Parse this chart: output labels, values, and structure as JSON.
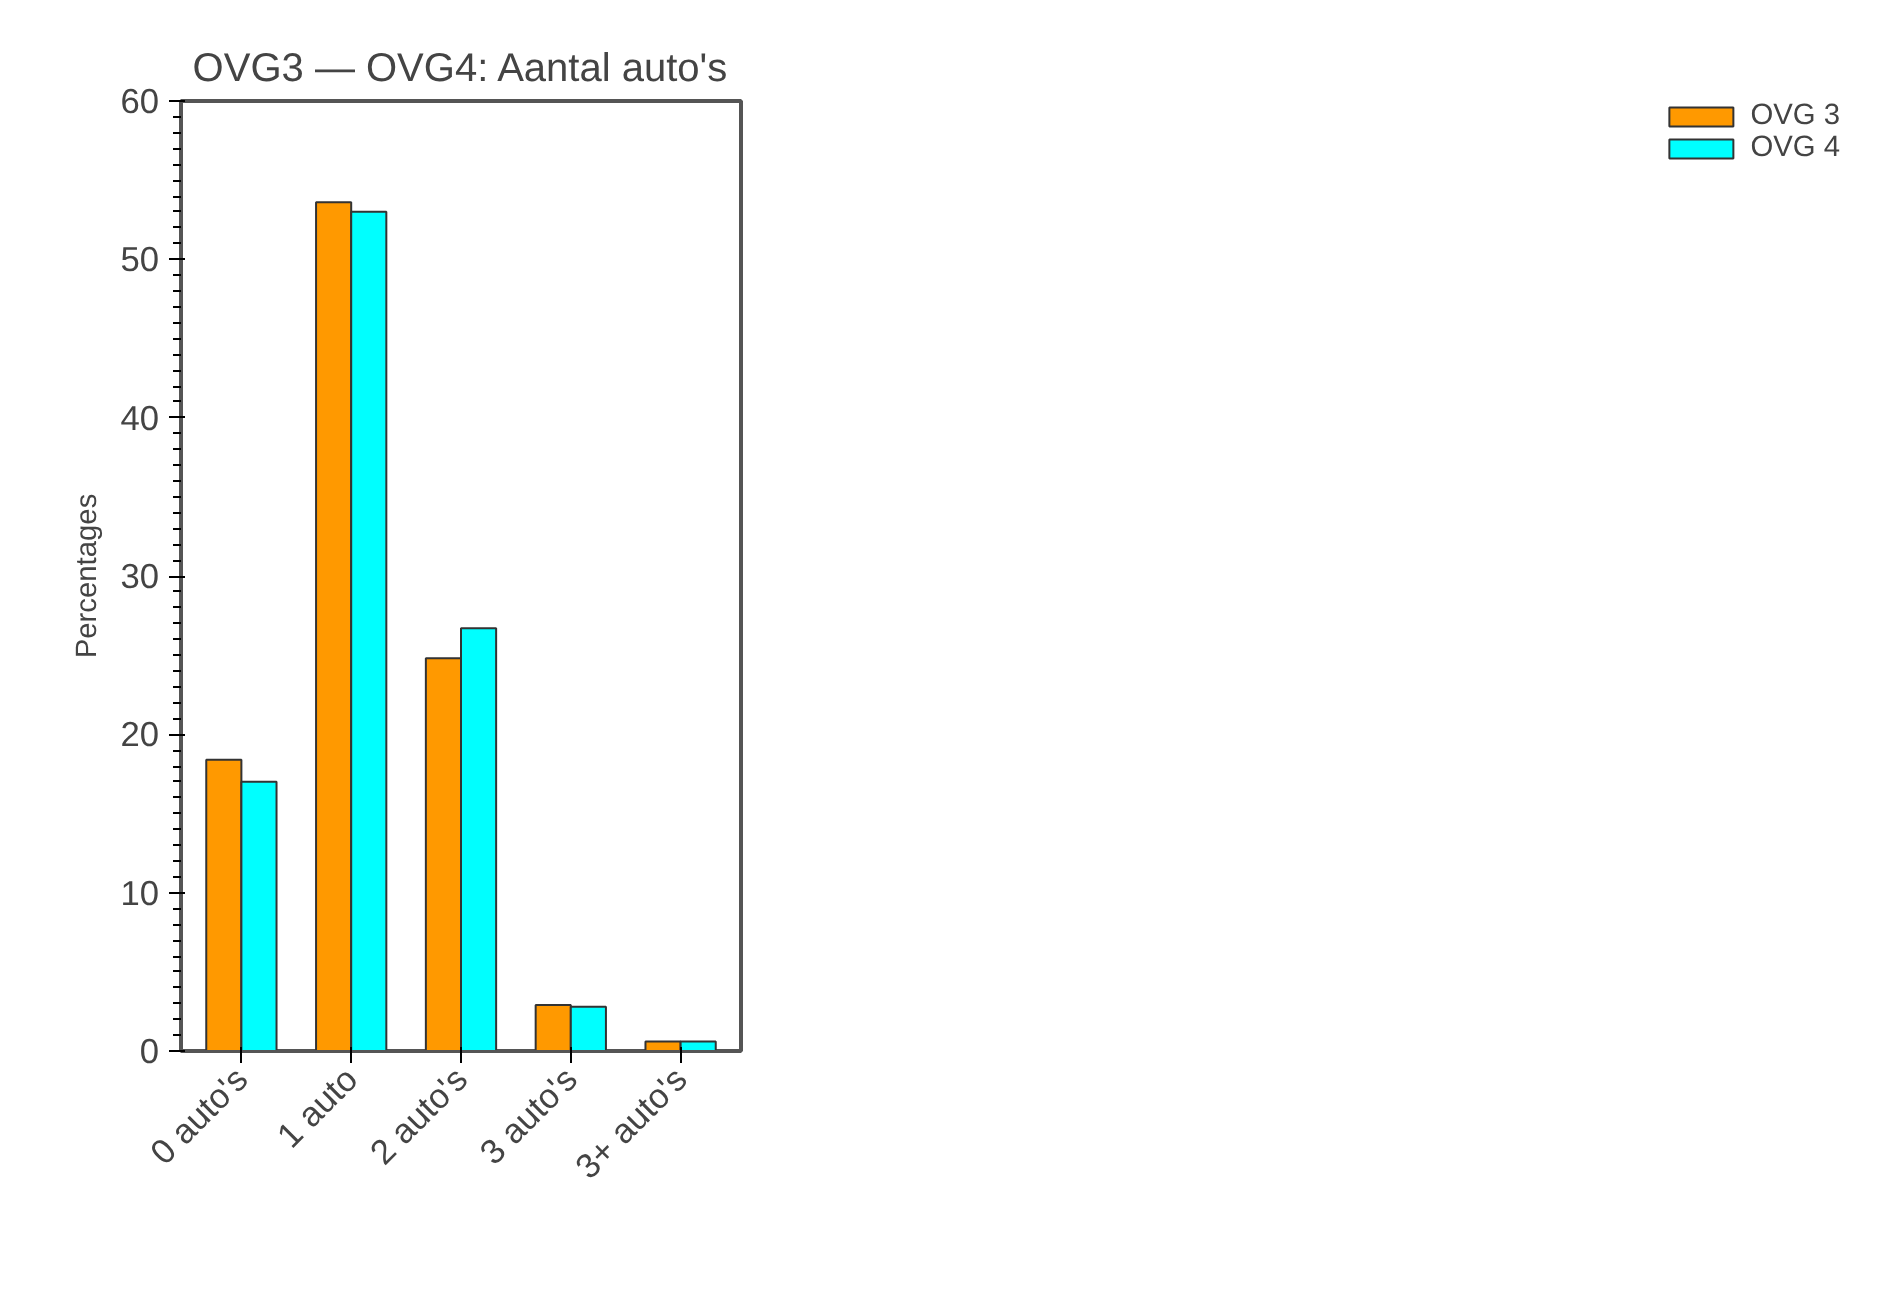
{
  "chart_data": {
    "type": "bar",
    "title": "OVG3 — OVG4: Aantal auto's",
    "ylabel": "Percentages",
    "categories": [
      "0 auto's",
      "1 auto",
      "2 auto's",
      "3 auto's",
      "3+ auto's"
    ],
    "series": [
      {
        "name": "OVG 3",
        "color": "#ff9900",
        "values": [
          18.4,
          53.6,
          24.8,
          2.9,
          0.6
        ]
      },
      {
        "name": "OVG 4",
        "color": "#00ffff",
        "values": [
          17.0,
          53.0,
          26.7,
          2.8,
          0.6
        ]
      }
    ],
    "ylim": [
      0,
      60
    ],
    "yticks": [
      0,
      10,
      20,
      30,
      40,
      50,
      60
    ],
    "grid": false,
    "legend": "right"
  }
}
